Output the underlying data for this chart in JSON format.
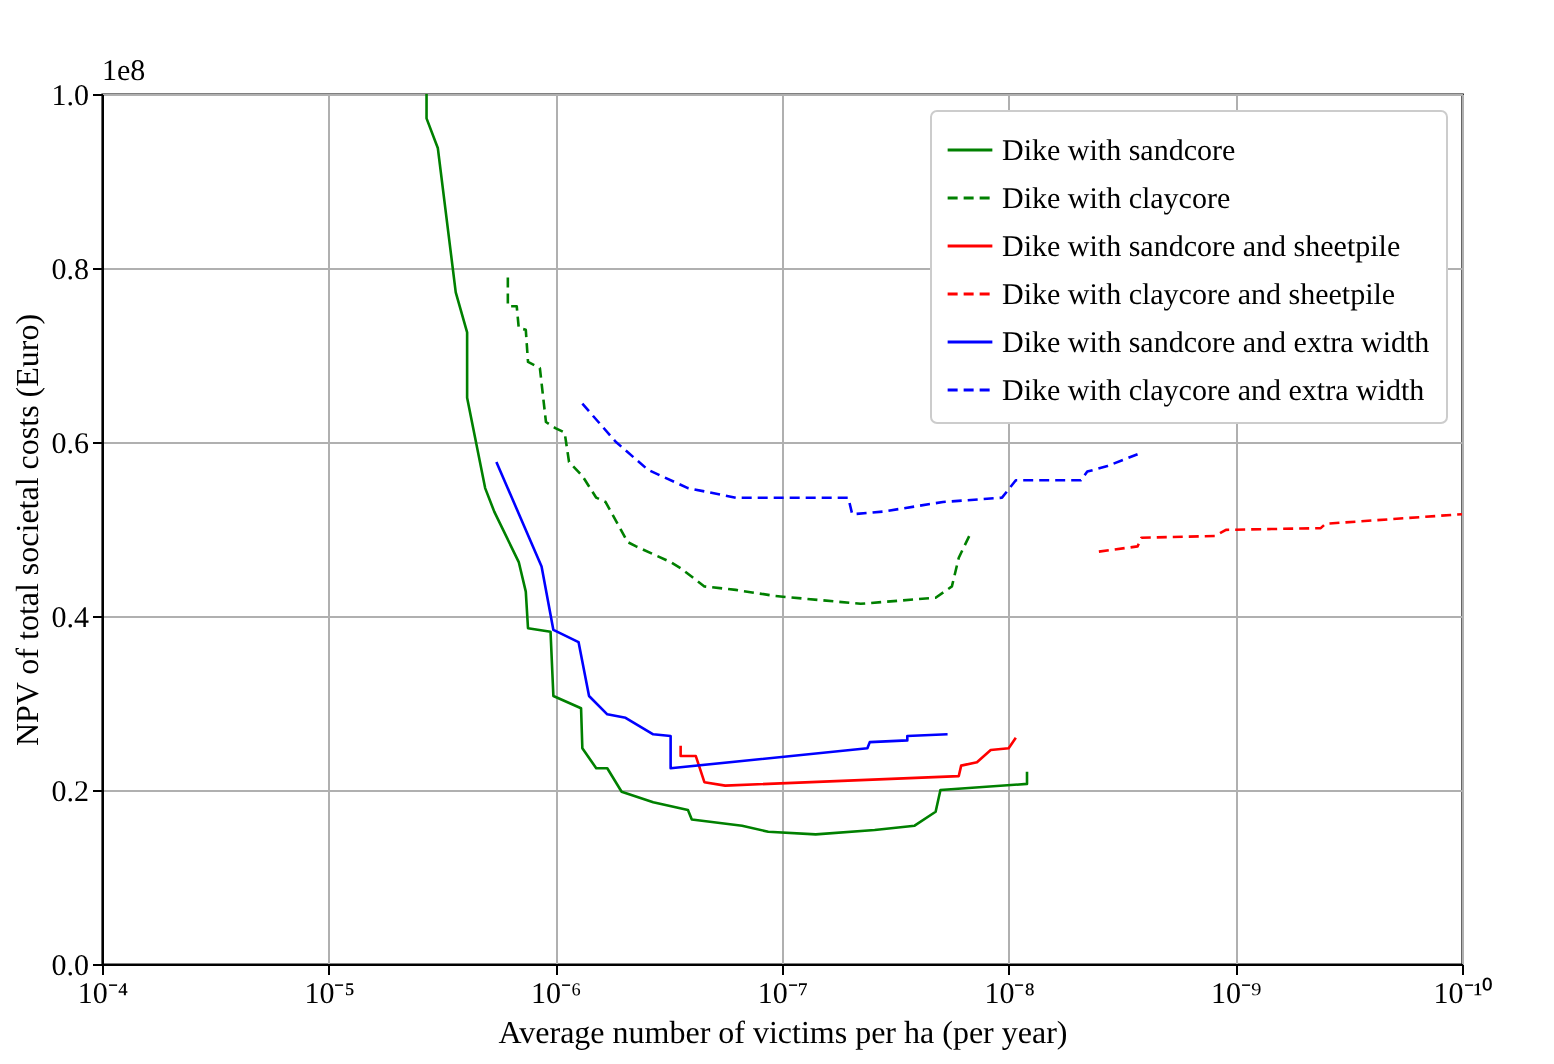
{
  "chart_data": {
    "type": "line",
    "xlabel": "Average number of victims per ha (per year)",
    "ylabel": "NPV of total societal costs (Euro)",
    "annotations": [
      "1e8"
    ],
    "log": "x",
    "grid": true,
    "legend": "top right",
    "xlim": [
      0.0001,
      1e-10
    ],
    "xticks": [
      {
        "value": 0.0001,
        "label": "10⁻⁴"
      },
      {
        "value": 1e-05,
        "label": "10⁻⁵"
      },
      {
        "value": 1e-06,
        "label": "10⁻⁶"
      },
      {
        "value": 1e-07,
        "label": "10⁻⁷"
      },
      {
        "value": 1e-08,
        "label": "10⁻⁸"
      },
      {
        "value": 1e-09,
        "label": "10⁻⁹"
      },
      {
        "value": 1e-10,
        "label": "10⁻¹⁰"
      }
    ],
    "ylim": [
      0,
      1.0
    ],
    "yticks": [
      {
        "value": 0,
        "label": "0.0"
      },
      0.2,
      0.4,
      0.6,
      0.8,
      {
        "value": 1,
        "label": "1.0"
      }
    ],
    "series": [
      {
        "name": "Dike with sandcore",
        "color": "#008000",
        "line_style": "solid",
        "x": [
          3.7e-06,
          3.7e-06,
          3.3e-06,
          2.75e-06,
          2.45e-06,
          2.45e-06,
          2.04e-06,
          1.86e-06,
          1.45e-06,
          1.35e-06,
          1.32e-06,
          1.05e-06,
          1.02e-06,
          7.7e-07,
          7.6e-07,
          6.6e-07,
          5.9e-07,
          5.1e-07,
          3.7e-07,
          2.6e-07,
          2.5e-07,
          1.5e-07,
          1.15e-07,
          7.1e-08,
          3.9e-08,
          2.6e-08,
          2.1e-08,
          2e-08,
          8.3e-09,
          8.3e-09
        ],
        "values": [
          1.0,
          0.972,
          0.938,
          0.772,
          0.726,
          0.651,
          0.547,
          0.52,
          0.462,
          0.428,
          0.386,
          0.382,
          0.308,
          0.294,
          0.248,
          0.225,
          0.225,
          0.198,
          0.186,
          0.177,
          0.166,
          0.159,
          0.152,
          0.149,
          0.154,
          0.159,
          0.175,
          0.2,
          0.207,
          0.221
        ]
      },
      {
        "name": "Dike with claycore",
        "color": "#008000",
        "line_style": "dashed",
        "x": [
          1.62e-06,
          1.62e-06,
          1.48e-06,
          1.45e-06,
          1.35e-06,
          1.32e-06,
          1.17e-06,
          1.1e-06,
          1e-06,
          9.1e-07,
          8.7e-07,
          7.6e-07,
          6.6e-07,
          6e-07,
          4.8e-07,
          4.4e-07,
          3.1e-07,
          2.8e-07,
          2.2e-07,
          1.6e-07,
          1.07e-07,
          4.5e-08,
          2.1e-08,
          1.78e-08,
          1.66e-08,
          1.48e-08
        ],
        "values": [
          0.789,
          0.756,
          0.756,
          0.731,
          0.729,
          0.692,
          0.685,
          0.623,
          0.616,
          0.611,
          0.577,
          0.561,
          0.536,
          0.531,
          0.485,
          0.48,
          0.462,
          0.455,
          0.434,
          0.43,
          0.423,
          0.414,
          0.421,
          0.434,
          0.467,
          0.494
        ]
      },
      {
        "name": "Dike with sandcore and sheetpile",
        "color": "#ff0000",
        "line_style": "solid",
        "x": [
          2.8e-07,
          2.8e-07,
          2.4e-07,
          2.2e-07,
          1.78e-07,
          1.66e-08,
          1.62e-08,
          1.38e-08,
          1.2e-08,
          1e-08,
          9.3e-09
        ],
        "values": [
          0.251,
          0.239,
          0.239,
          0.209,
          0.205,
          0.216,
          0.228,
          0.232,
          0.246,
          0.248,
          0.26
        ]
      },
      {
        "name": "Dike with claycore and sheetpile",
        "color": "#ff0000",
        "line_style": "dashed",
        "x": [
          4e-09,
          2.7e-09,
          2.6e-09,
          1.23e-09,
          1.1e-09,
          4.2e-10,
          4e-10,
          1e-10
        ],
        "values": [
          0.474,
          0.48,
          0.49,
          0.492,
          0.499,
          0.501,
          0.506,
          0.517
        ]
      },
      {
        "name": "Dike with sandcore and extra width",
        "color": "#0000ff",
        "line_style": "solid",
        "x": [
          1.82e-06,
          1.15e-06,
          1.02e-06,
          7.9e-07,
          7.1e-07,
          5.9e-07,
          4.9e-07,
          3.7e-07,
          3.1e-07,
          3.1e-07,
          4.2e-08,
          4.1e-08,
          2.8e-08,
          2.8e-08,
          1.86e-08
        ],
        "values": [
          0.577,
          0.457,
          0.384,
          0.37,
          0.308,
          0.287,
          0.283,
          0.264,
          0.262,
          0.225,
          0.248,
          0.255,
          0.257,
          0.262,
          0.264
        ]
      },
      {
        "name": "Dike with claycore and extra width",
        "color": "#0000ff",
        "line_style": "dashed",
        "x": [
          7.6e-07,
          5.4e-07,
          3.9e-07,
          2.6e-07,
          1.6e-07,
          5.1e-08,
          4.9e-08,
          3.6e-08,
          1.95e-08,
          1.07e-08,
          9.3e-09,
          4.8e-09,
          4.5e-09,
          3.7e-09,
          2.7e-09
        ],
        "values": [
          0.644,
          0.6,
          0.568,
          0.547,
          0.536,
          0.536,
          0.517,
          0.52,
          0.531,
          0.536,
          0.556,
          0.556,
          0.566,
          0.572,
          0.586
        ]
      }
    ]
  }
}
